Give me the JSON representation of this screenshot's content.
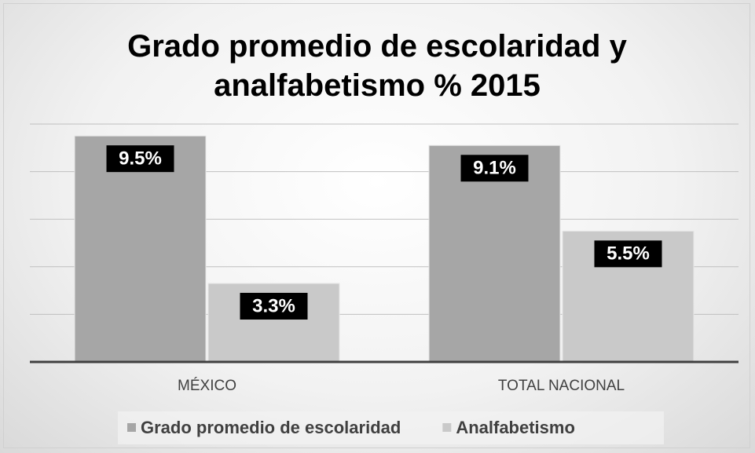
{
  "chart_data": {
    "type": "bar",
    "title": "Grado promedio de escolaridad y analfabetismo % 2015",
    "categories": [
      "MÉXICO",
      "TOTAL NACIONAL"
    ],
    "series": [
      {
        "name": "Grado promedio de escolaridad",
        "color": "#a6a6a6",
        "values": [
          9.5,
          9.1
        ],
        "value_labels": [
          "9.5%",
          "9.1%"
        ]
      },
      {
        "name": "Analfabetismo",
        "color": "#c9c9c9",
        "values": [
          3.3,
          5.5
        ],
        "value_labels": [
          "3.3%",
          "5.5%"
        ]
      }
    ],
    "ylim": [
      0,
      10
    ],
    "yticks": [
      0,
      2,
      4,
      6,
      8,
      10
    ],
    "grid": true,
    "legend": "bottom"
  }
}
